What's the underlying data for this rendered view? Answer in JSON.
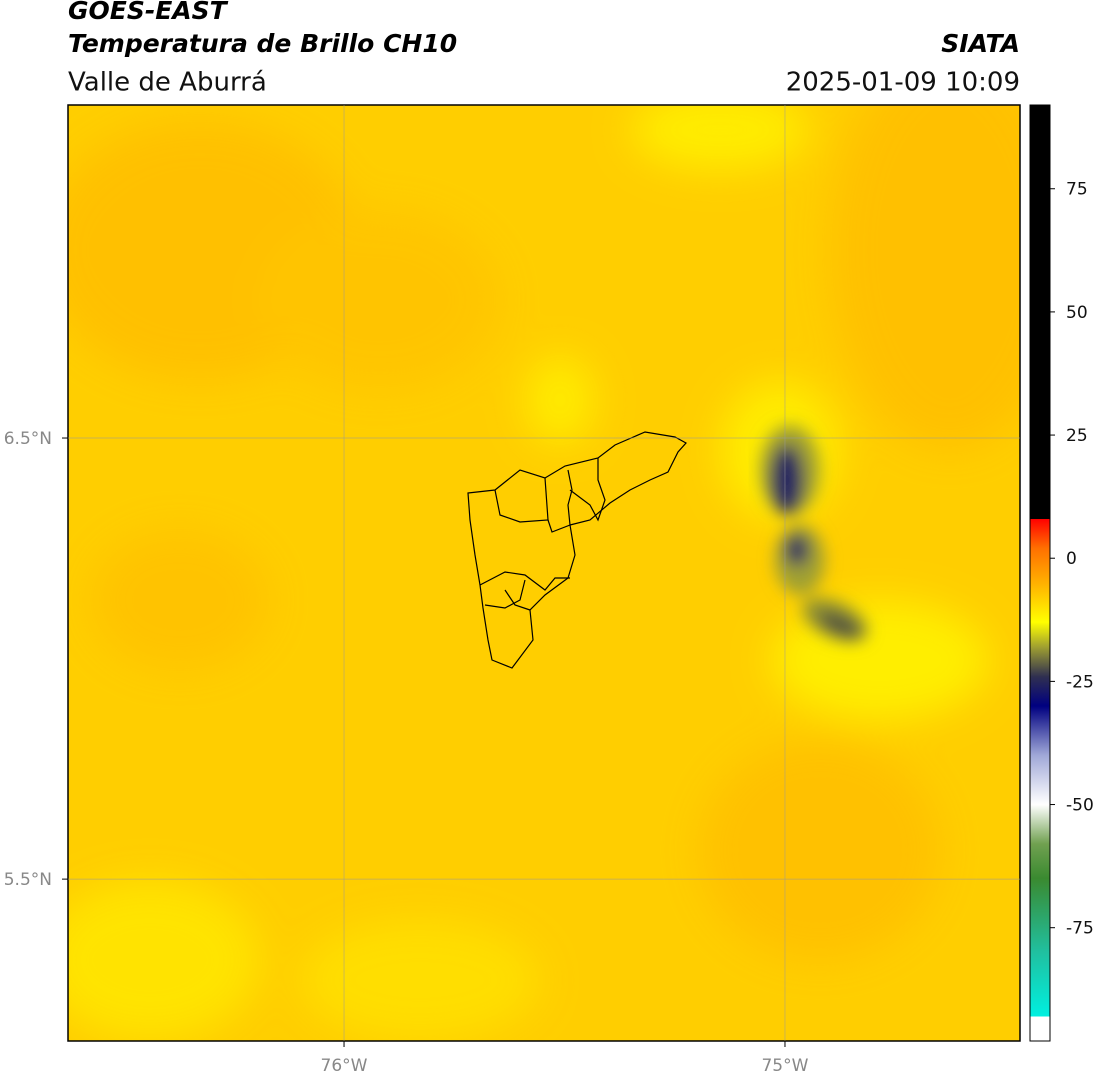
{
  "header": {
    "satellite": "GOES-EAST",
    "product": "Temperatura de Brillo CH10",
    "region": "Valle de Aburrá",
    "source": "SIATA",
    "datetime": "2025-01-09 10:09"
  },
  "map": {
    "xlim": [
      -76.626,
      -74.467
    ],
    "ylim": [
      5.133,
      7.255
    ],
    "xticks": [
      {
        "value": -76,
        "label": "76°W"
      },
      {
        "value": -75,
        "label": "75°W"
      }
    ],
    "yticks": [
      {
        "value": 6.5,
        "label": "6.5°N"
      },
      {
        "value": 5.5,
        "label": "5.5°N"
      }
    ],
    "grid": true
  },
  "colorbar": {
    "lim": [
      -98,
      92
    ],
    "ticks": [
      75,
      50,
      25,
      0,
      -25,
      -50,
      -75
    ],
    "stops": [
      {
        "value": -98,
        "color": "#ffffff"
      },
      {
        "value": -93,
        "color": "#ffffff"
      },
      {
        "value": -93,
        "color": "#00f0e0"
      },
      {
        "value": -80,
        "color": "#20c0a0"
      },
      {
        "value": -65,
        "color": "#3a8a30"
      },
      {
        "value": -58,
        "color": "#70a050"
      },
      {
        "value": -50,
        "color": "#ffffff"
      },
      {
        "value": -40,
        "color": "#a0a8d8"
      },
      {
        "value": -30,
        "color": "#000080"
      },
      {
        "value": -24,
        "color": "#303050"
      },
      {
        "value": -18,
        "color": "#a0a030"
      },
      {
        "value": -13,
        "color": "#ffff00"
      },
      {
        "value": -5,
        "color": "#ffb000"
      },
      {
        "value": 2,
        "color": "#ff7000"
      },
      {
        "value": 8,
        "color": "#ff0000"
      },
      {
        "value": 8,
        "color": "#000000"
      },
      {
        "value": 92,
        "color": "#000000"
      }
    ]
  }
}
